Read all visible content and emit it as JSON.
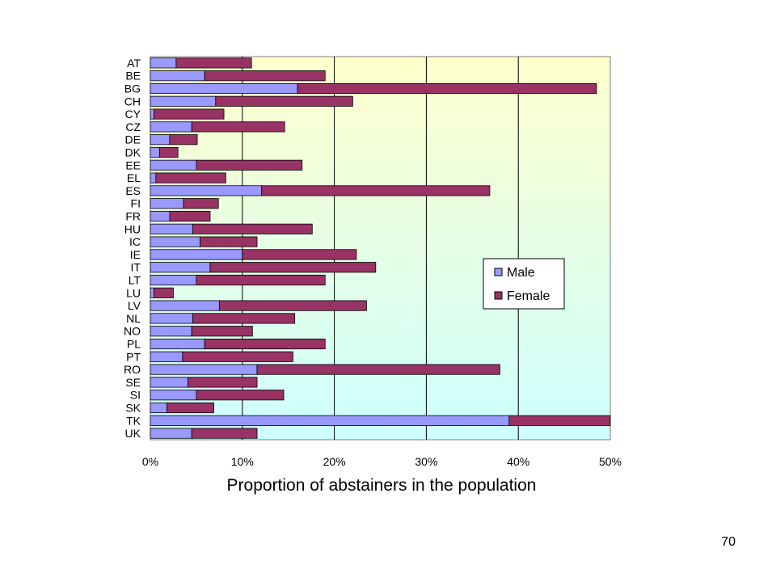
{
  "chart_data": {
    "type": "bar",
    "orientation": "horizontal",
    "stacked": true,
    "categories": [
      "AT",
      "BE",
      "BG",
      "CH",
      "CY",
      "CZ",
      "DE",
      "DK",
      "EE",
      "EL",
      "ES",
      "FI",
      "FR",
      "HU",
      "IC",
      "IE",
      "IT",
      "LT",
      "LU",
      "LV",
      "NL",
      "NO",
      "PL",
      "PT",
      "RO",
      "SE",
      "SI",
      "SK",
      "TK",
      "UK"
    ],
    "series": [
      {
        "name": "Male",
        "color": "#9999ff",
        "values": [
          2.8,
          5.9,
          16.0,
          7.1,
          0.4,
          4.5,
          2.1,
          1.0,
          5.0,
          0.6,
          12.1,
          3.6,
          2.1,
          4.6,
          5.4,
          10.0,
          6.5,
          5.0,
          0.4,
          7.5,
          4.6,
          4.5,
          5.9,
          3.5,
          11.6,
          4.1,
          5.0,
          1.8,
          39.0,
          4.5
        ]
      },
      {
        "name": "Female",
        "color": "#993366",
        "values": [
          8.2,
          13.1,
          32.5,
          14.9,
          7.6,
          10.1,
          3.0,
          2.0,
          11.5,
          7.6,
          24.8,
          3.8,
          4.4,
          13.0,
          6.2,
          12.4,
          18.0,
          14.0,
          2.1,
          16.0,
          11.1,
          6.6,
          13.1,
          12.0,
          26.4,
          7.5,
          9.5,
          5.1,
          11.2,
          7.1
        ]
      }
    ],
    "xlabel": "Proportion of abstainers in the population",
    "xlim": [
      0,
      50
    ],
    "xticks": [
      "0%",
      "10%",
      "20%",
      "30%",
      "40%",
      "50%"
    ],
    "grid": "vertical",
    "legend_position": "right",
    "plot_background": "gradient light-yellow to light-cyan"
  },
  "page_number": "70"
}
